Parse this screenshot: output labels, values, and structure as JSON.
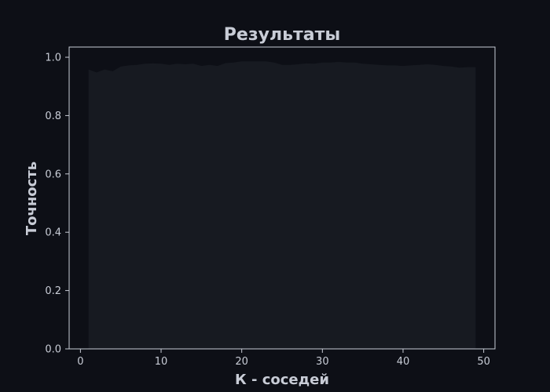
{
  "colors": {
    "figure_background": "#0d0f16",
    "axes_background": "#0d0f16",
    "area_fill": "#171a21",
    "spine": "#c8ccd6",
    "tick_text": "#c8ccd6",
    "label_text": "#c8ccd6"
  },
  "chart_data": {
    "type": "area",
    "title": "Результаты",
    "xlabel": "К - соседей",
    "ylabel": "Точность",
    "xlim": [
      -1.4,
      51.4
    ],
    "ylim": [
      0.0,
      1.035
    ],
    "xticks": [
      0,
      10,
      20,
      30,
      40,
      50
    ],
    "yticks": [
      0.0,
      0.2,
      0.4,
      0.6,
      0.8,
      1.0
    ],
    "xtick_labels": [
      "0",
      "10",
      "20",
      "30",
      "40",
      "50"
    ],
    "ytick_labels": [
      "0.0",
      "0.2",
      "0.4",
      "0.6",
      "0.8",
      "1.0"
    ],
    "grid": false,
    "legend": "none",
    "series": [
      {
        "x": [
          1,
          2,
          3,
          4,
          5,
          6,
          7,
          8,
          9,
          10,
          11,
          12,
          13,
          14,
          15,
          16,
          17,
          18,
          19,
          20,
          21,
          22,
          23,
          24,
          25,
          26,
          27,
          28,
          29,
          30,
          31,
          32,
          33,
          34,
          35,
          36,
          37,
          38,
          39,
          40,
          41,
          42,
          43,
          44,
          45,
          46,
          47,
          48,
          49
        ],
        "values": [
          0.958,
          0.948,
          0.958,
          0.952,
          0.968,
          0.972,
          0.974,
          0.978,
          0.979,
          0.978,
          0.974,
          0.978,
          0.976,
          0.978,
          0.97,
          0.974,
          0.97,
          0.98,
          0.982,
          0.986,
          0.986,
          0.986,
          0.986,
          0.982,
          0.974,
          0.974,
          0.976,
          0.979,
          0.978,
          0.982,
          0.982,
          0.984,
          0.982,
          0.982,
          0.978,
          0.976,
          0.974,
          0.972,
          0.972,
          0.97,
          0.972,
          0.974,
          0.976,
          0.974,
          0.97,
          0.968,
          0.964,
          0.966,
          0.966
        ]
      }
    ]
  }
}
